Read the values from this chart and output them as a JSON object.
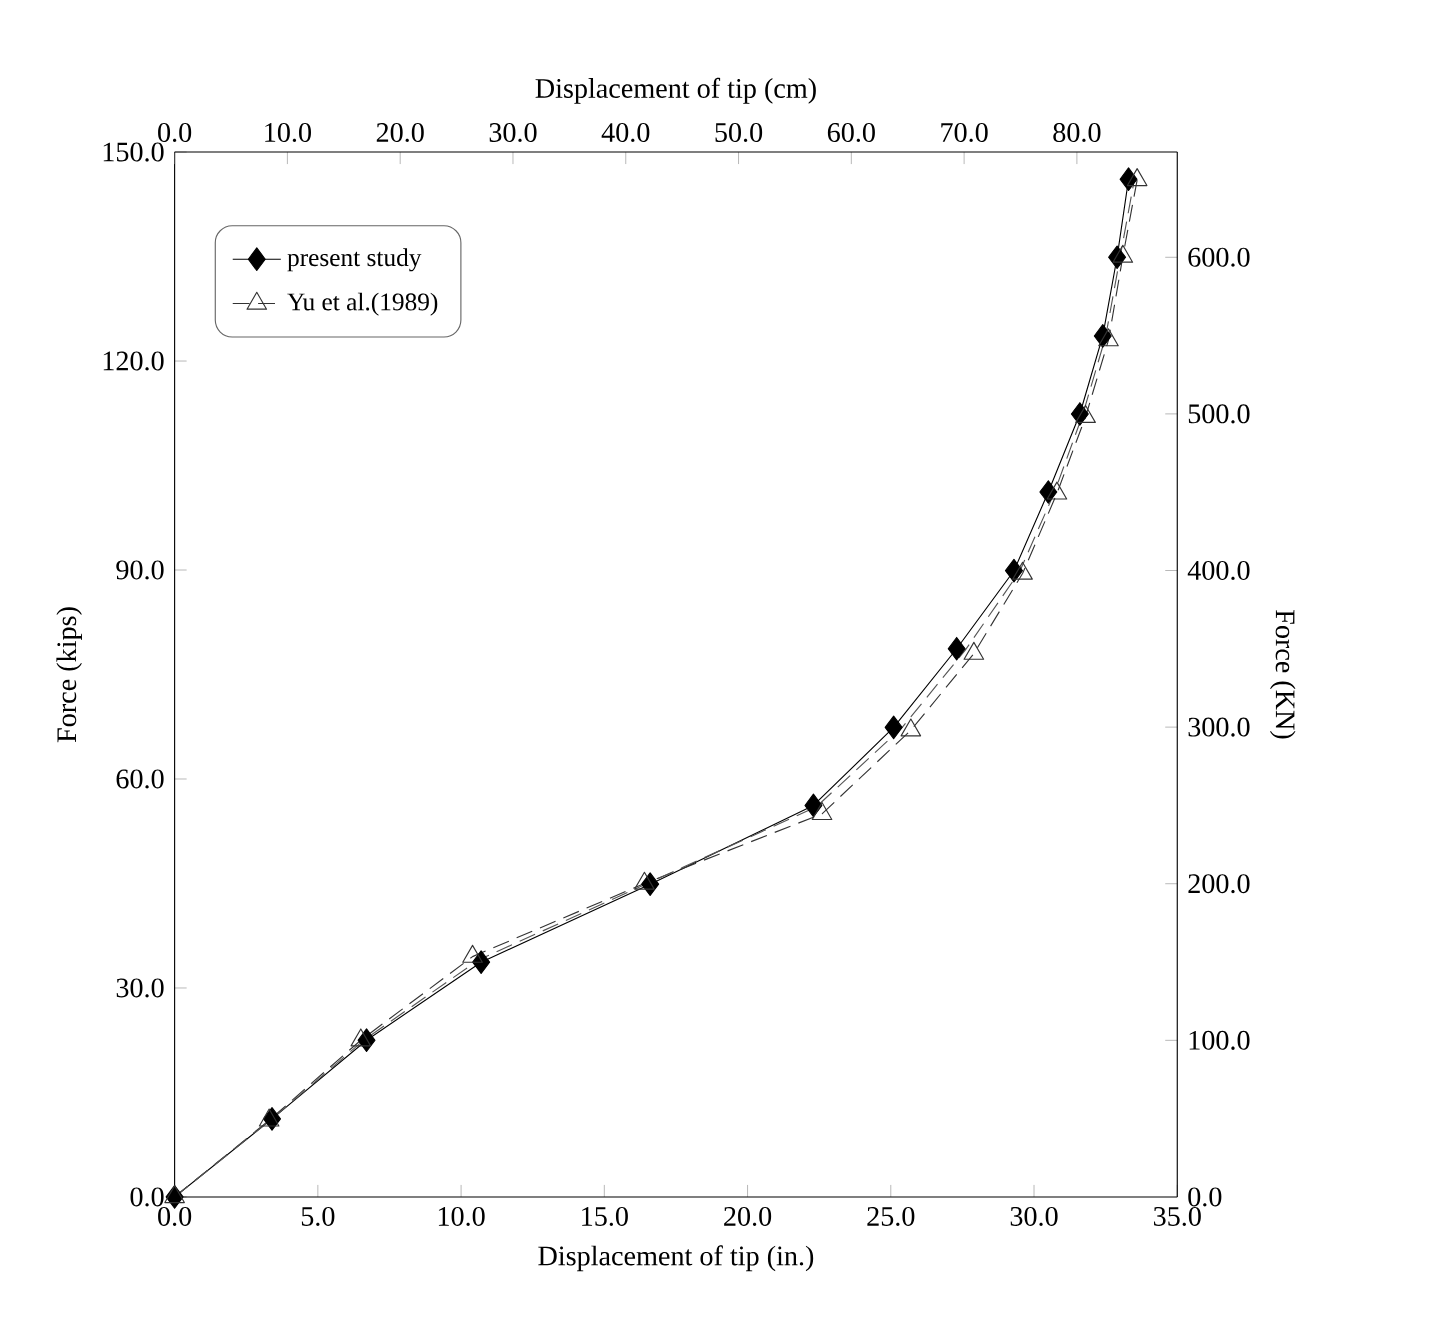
{
  "chart_data": {
    "type": "line",
    "xlabel": "Displacement of tip (in.)",
    "ylabel": "Force (kips)",
    "x2label": "Displacement of tip (cm)",
    "y2label": "Force (KN)",
    "xlim": [
      0,
      35
    ],
    "ylim": [
      0,
      150
    ],
    "x2lim": [
      0,
      88.9
    ],
    "y2lim": [
      0,
      667.2
    ],
    "xticks": [
      {
        "value": 0,
        "label": "0.0"
      },
      {
        "value": 5,
        "label": "5.0"
      },
      {
        "value": 10,
        "label": "10.0"
      },
      {
        "value": 15,
        "label": "15.0"
      },
      {
        "value": 20,
        "label": "20.0"
      },
      {
        "value": 25,
        "label": "25.0"
      },
      {
        "value": 30,
        "label": "30.0"
      },
      {
        "value": 35,
        "label": "35.0"
      }
    ],
    "yticks": [
      {
        "value": 0,
        "label": "0.0"
      },
      {
        "value": 30,
        "label": "30.0"
      },
      {
        "value": 60,
        "label": "60.0"
      },
      {
        "value": 90,
        "label": "90.0"
      },
      {
        "value": 120,
        "label": "120.0"
      },
      {
        "value": 150,
        "label": "150.0"
      }
    ],
    "x2ticks": [
      {
        "value": 0,
        "label": "0.0"
      },
      {
        "value": 10,
        "label": "10.0"
      },
      {
        "value": 20,
        "label": "20.0"
      },
      {
        "value": 30,
        "label": "30.0"
      },
      {
        "value": 40,
        "label": "40.0"
      },
      {
        "value": 50,
        "label": "50.0"
      },
      {
        "value": 60,
        "label": "60.0"
      },
      {
        "value": 70,
        "label": "70.0"
      },
      {
        "value": 80,
        "label": "80.0"
      }
    ],
    "y2ticks": [
      {
        "value": 0,
        "label": "0.0"
      },
      {
        "value": 100,
        "label": "100.0"
      },
      {
        "value": 200,
        "label": "200.0"
      },
      {
        "value": 300,
        "label": "300.0"
      },
      {
        "value": 400,
        "label": "400.0"
      },
      {
        "value": 500,
        "label": "500.0"
      },
      {
        "value": 600,
        "label": "600.0"
      }
    ],
    "legend": "top left",
    "grid": false,
    "series": [
      {
        "name": "present study",
        "color": "#000000",
        "marker": "diamond",
        "line_style": "solid",
        "x": [
          0,
          3.4,
          6.7,
          10.7,
          16.6,
          22.3,
          25.1,
          27.3,
          29.3,
          30.5,
          31.6,
          32.4,
          32.9,
          33.3
        ],
        "values": [
          0,
          11.2,
          22.5,
          33.7,
          44.9,
          56.2,
          67.4,
          78.7,
          89.9,
          101.2,
          112.4,
          123.6,
          134.9,
          146.1
        ]
      },
      {
        "name": "Yu et al.(1989)",
        "color": "#333333",
        "marker": "triangle",
        "line_style": "dashed",
        "x": [
          0,
          3.3,
          6.5,
          10.4,
          16.4,
          22.6,
          25.7,
          27.9,
          29.6,
          30.8,
          31.8,
          32.6,
          33.1,
          33.6
        ],
        "values": [
          0,
          11,
          22.5,
          34.5,
          45,
          55,
          67,
          78,
          89.5,
          101,
          112,
          123,
          135,
          146
        ]
      },
      {
        "color": "#555555",
        "marker": "none",
        "line_style": "dashed",
        "x": [
          0,
          3.4,
          6.6,
          10.6,
          16.5,
          22.4,
          25.4,
          27.6,
          29.5,
          30.7,
          31.7,
          32.5,
          33.0,
          33.5
        ],
        "values": [
          0,
          11.2,
          22.5,
          34,
          45,
          56,
          67.4,
          78.5,
          89.8,
          101,
          112.3,
          123.5,
          134.8,
          146
        ]
      }
    ]
  }
}
